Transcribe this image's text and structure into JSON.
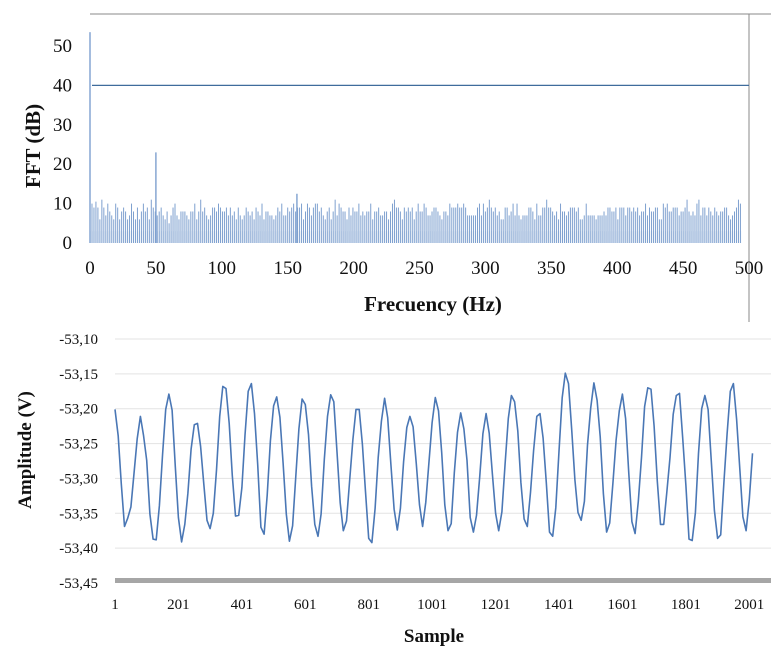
{
  "chart_data": [
    {
      "type": "bar",
      "xlabel": "Frecuency (Hz)",
      "ylabel": "FFT (dB)",
      "xlim": [
        0,
        500
      ],
      "ylim": [
        0,
        55
      ],
      "x_ticks": [
        "0",
        "50",
        "100",
        "150",
        "200",
        "250",
        "300",
        "350",
        "400",
        "450",
        "500"
      ],
      "y_ticks": [
        "0",
        "10",
        "20",
        "30",
        "40",
        "50"
      ],
      "reference_line": {
        "y": 40
      },
      "bar_spacing_hz": 1.5,
      "values": [
        53.5,
        10,
        9,
        10.5,
        9,
        6,
        11,
        9,
        7,
        10,
        8,
        7,
        6,
        10,
        9,
        6,
        8,
        9,
        8,
        6,
        7,
        10,
        8,
        6,
        9,
        6,
        8,
        10,
        8,
        9,
        6,
        11,
        9,
        8,
        7,
        8,
        9,
        7,
        6,
        8,
        5,
        7,
        9,
        10,
        7,
        6,
        8,
        8,
        8,
        7,
        6,
        8,
        8,
        10,
        6,
        8,
        11,
        8,
        9,
        7,
        6,
        7,
        9,
        9,
        8,
        10,
        9,
        8,
        8,
        9,
        7,
        9,
        7,
        8,
        6,
        9,
        7,
        6,
        7,
        9,
        8,
        7,
        8,
        6,
        9,
        8,
        7,
        10,
        6,
        8,
        8,
        7,
        7,
        6,
        7,
        9,
        8,
        10,
        7,
        7,
        9,
        8,
        9,
        10,
        8,
        9,
        9,
        10,
        6,
        8,
        10,
        9,
        7,
        9,
        10,
        10,
        8,
        9,
        7,
        6,
        8,
        9,
        6,
        8,
        11,
        7,
        10,
        9,
        8,
        8,
        6,
        9,
        7,
        9,
        8,
        8,
        10,
        7,
        8,
        7,
        8,
        8,
        10,
        6,
        8,
        8,
        9,
        7,
        7,
        8,
        8,
        6,
        8,
        10,
        11,
        9,
        9,
        8,
        6,
        9,
        8,
        9,
        8,
        9,
        6,
        8,
        10,
        8,
        8,
        10,
        9,
        7,
        7,
        8,
        9,
        9,
        8,
        7,
        6,
        8,
        8,
        7,
        10,
        9,
        9,
        9,
        10,
        9,
        9,
        10,
        9,
        7,
        7,
        7,
        7,
        7,
        9,
        10,
        7,
        10,
        8,
        9,
        11,
        9,
        8,
        9,
        7,
        8,
        6,
        6,
        9,
        9,
        7,
        8,
        10,
        7,
        10,
        7,
        6,
        7,
        7,
        7,
        9,
        9,
        8,
        6,
        10,
        7,
        7,
        9,
        9,
        11,
        9,
        9,
        8,
        7,
        8,
        6,
        10,
        8,
        8,
        7,
        8,
        9,
        9,
        9,
        8,
        9,
        6,
        6,
        7,
        10,
        7,
        7,
        7,
        7,
        6,
        7,
        7,
        7,
        8,
        7,
        9,
        9,
        8,
        8,
        9,
        6,
        9,
        9,
        9,
        7,
        9,
        9,
        8,
        9,
        8,
        9,
        7,
        8,
        8,
        10,
        7,
        9,
        8,
        8,
        9,
        9,
        6,
        6,
        10,
        9,
        10,
        8,
        8,
        9,
        9,
        9,
        7,
        8,
        8,
        9,
        11,
        8,
        7,
        8,
        7,
        10,
        11,
        7,
        9,
        9,
        7,
        9,
        8,
        7,
        9,
        8,
        7,
        8,
        8,
        9,
        9,
        7,
        6,
        7,
        8,
        9,
        11,
        10
      ],
      "peaks": [
        {
          "x": 0,
          "y": 53.5
        },
        {
          "x": 50,
          "y": 23
        },
        {
          "x": 157,
          "y": 12.5
        }
      ]
    },
    {
      "type": "line",
      "xlabel": "Sample",
      "ylabel": "Amplitude (V)",
      "xlim": [
        1,
        2060
      ],
      "ylim": [
        -53.45,
        -53.1
      ],
      "x_ticks": [
        "1",
        "201",
        "401",
        "601",
        "801",
        "1001",
        "1201",
        "1401",
        "1601",
        "1801",
        "2001"
      ],
      "y_ticks": [
        "-53,10",
        "-53,15",
        "-53,20",
        "-53,25",
        "-53,30",
        "-53,35",
        "-53,40",
        "-53,45"
      ],
      "series": [
        {
          "sample_step": 10,
          "values": [
            -53.201,
            -53.239,
            -53.308,
            -53.369,
            -53.357,
            -53.341,
            -53.293,
            -53.243,
            -53.211,
            -53.238,
            -53.274,
            -53.351,
            -53.387,
            -53.388,
            -53.339,
            -53.265,
            -53.201,
            -53.179,
            -53.202,
            -53.283,
            -53.356,
            -53.391,
            -53.366,
            -53.321,
            -53.258,
            -53.223,
            -53.221,
            -53.254,
            -53.308,
            -53.36,
            -53.372,
            -53.35,
            -53.288,
            -53.211,
            -53.168,
            -53.171,
            -53.221,
            -53.296,
            -53.354,
            -53.353,
            -53.313,
            -53.238,
            -53.175,
            -53.164,
            -53.207,
            -53.28,
            -53.37,
            -53.38,
            -53.324,
            -53.246,
            -53.196,
            -53.183,
            -53.212,
            -53.278,
            -53.351,
            -53.39,
            -53.368,
            -53.297,
            -53.229,
            -53.186,
            -53.194,
            -53.237,
            -53.311,
            -53.366,
            -53.383,
            -53.351,
            -53.273,
            -53.211,
            -53.18,
            -53.19,
            -53.262,
            -53.335,
            -53.375,
            -53.361,
            -53.302,
            -53.244,
            -53.201,
            -53.201,
            -53.251,
            -53.319,
            -53.386,
            -53.392,
            -53.343,
            -53.27,
            -53.218,
            -53.185,
            -53.213,
            -53.28,
            -53.344,
            -53.374,
            -53.343,
            -53.276,
            -53.227,
            -53.211,
            -53.226,
            -53.279,
            -53.338,
            -53.369,
            -53.334,
            -53.276,
            -53.22,
            -53.184,
            -53.203,
            -53.263,
            -53.338,
            -53.375,
            -53.365,
            -53.292,
            -53.234,
            -53.206,
            -53.229,
            -53.274,
            -53.356,
            -53.377,
            -53.353,
            -53.298,
            -53.236,
            -53.207,
            -53.235,
            -53.294,
            -53.35,
            -53.375,
            -53.348,
            -53.279,
            -53.214,
            -53.181,
            -53.19,
            -53.232,
            -53.306,
            -53.358,
            -53.369,
            -53.32,
            -53.26,
            -53.211,
            -53.207,
            -53.242,
            -53.306,
            -53.377,
            -53.383,
            -53.342,
            -53.261,
            -53.184,
            -53.149,
            -53.164,
            -53.23,
            -53.302,
            -53.349,
            -53.36,
            -53.333,
            -53.252,
            -53.199,
            -53.163,
            -53.188,
            -53.24,
            -53.322,
            -53.377,
            -53.364,
            -53.307,
            -53.245,
            -53.203,
            -53.179,
            -53.214,
            -53.293,
            -53.362,
            -53.379,
            -53.333,
            -53.27,
            -53.197,
            -53.17,
            -53.172,
            -53.225,
            -53.304,
            -53.366,
            -53.366,
            -53.32,
            -53.27,
            -53.208,
            -53.181,
            -53.178,
            -53.242,
            -53.31,
            -53.387,
            -53.389,
            -53.349,
            -53.264,
            -53.2,
            -53.181,
            -53.201,
            -53.273,
            -53.346,
            -53.386,
            -53.381,
            -53.306,
            -53.236,
            -53.175,
            -53.164,
            -53.215,
            -53.286,
            -53.355,
            -53.375,
            -53.33,
            -53.264
          ]
        }
      ]
    }
  ]
}
